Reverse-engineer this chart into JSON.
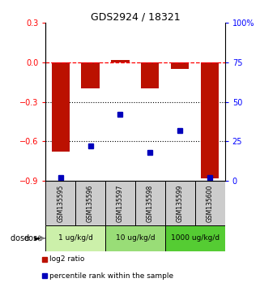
{
  "title": "GDS2924 / 18321",
  "samples": [
    "GSM135595",
    "GSM135596",
    "GSM135597",
    "GSM135598",
    "GSM135599",
    "GSM135600"
  ],
  "log2_ratio": [
    -0.68,
    -0.2,
    0.02,
    -0.2,
    -0.05,
    -0.88
  ],
  "percentile_rank": [
    2,
    22,
    42,
    18,
    32,
    2
  ],
  "dose_groups": [
    {
      "label": "1 ug/kg/d",
      "color": "#ccf0aa",
      "start": 0,
      "end": 2
    },
    {
      "label": "10 ug/kg/d",
      "color": "#99dd77",
      "start": 2,
      "end": 4
    },
    {
      "label": "1000 ug/kg/d",
      "color": "#55cc33",
      "start": 4,
      "end": 6
    }
  ],
  "ylim_left": [
    -0.9,
    0.3
  ],
  "ylim_right": [
    0,
    100
  ],
  "yticks_left": [
    -0.9,
    -0.6,
    -0.3,
    0.0,
    0.3
  ],
  "yticks_right": [
    0,
    25,
    50,
    75,
    100
  ],
  "bar_color": "#bb1100",
  "dot_color": "#0000bb",
  "grid_lines": [
    -0.3,
    -0.6
  ],
  "hline_y": 0.0,
  "label_bg": "#cccccc",
  "legend_items": [
    {
      "color": "#bb1100",
      "label": "log2 ratio"
    },
    {
      "color": "#0000bb",
      "label": "percentile rank within the sample"
    }
  ]
}
